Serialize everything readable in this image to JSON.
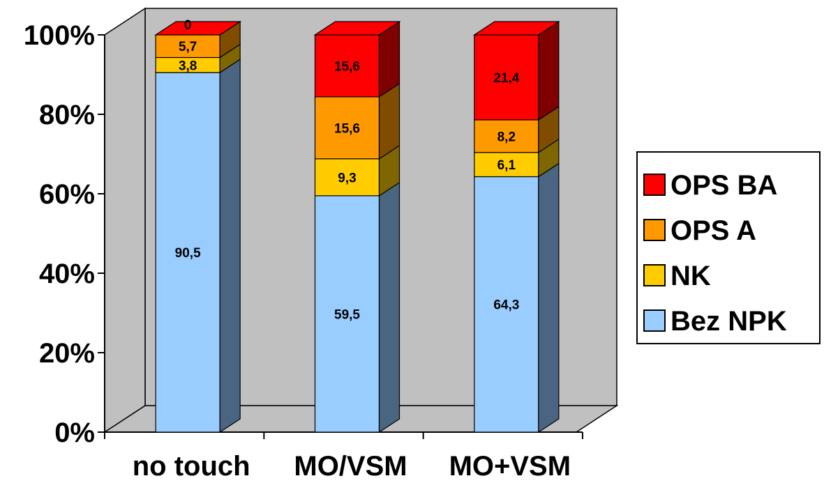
{
  "chart_data": {
    "type": "bar",
    "stacked": true,
    "percent_stacked": true,
    "three_d": true,
    "categories": [
      "no touch",
      "MO/VSM",
      "MO+VSM"
    ],
    "series": [
      {
        "name": "Bez NPK",
        "values": [
          90.5,
          59.5,
          64.3
        ],
        "labels": [
          "90,5",
          "59,5",
          "64,3"
        ],
        "color": "#99CCFF",
        "side_color": "#4A6581"
      },
      {
        "name": "NK",
        "values": [
          3.8,
          9.3,
          6.1
        ],
        "labels": [
          "3,8",
          "9,3",
          "6,1"
        ],
        "color": "#FFCC00",
        "side_color": "#7F6600"
      },
      {
        "name": "OPS A",
        "values": [
          5.7,
          15.6,
          8.2
        ],
        "labels": [
          "5,7",
          "15,6",
          "8,2"
        ],
        "color": "#FF9900",
        "side_color": "#7F4C00"
      },
      {
        "name": "OPS BA",
        "values": [
          0,
          15.6,
          21.4
        ],
        "labels": [
          "0",
          "15,6",
          "21,4"
        ],
        "color": "#FF0000",
        "side_color": "#800000"
      }
    ],
    "legend_order": [
      "OPS BA",
      "OPS A",
      "NK",
      "Bez NPK"
    ],
    "y_ticks": [
      "0%",
      "20%",
      "40%",
      "60%",
      "80%",
      "100%"
    ],
    "ylim": [
      0,
      100
    ],
    "legend_position": "right",
    "grid": false,
    "wall_color": "#C0C0C0"
  }
}
